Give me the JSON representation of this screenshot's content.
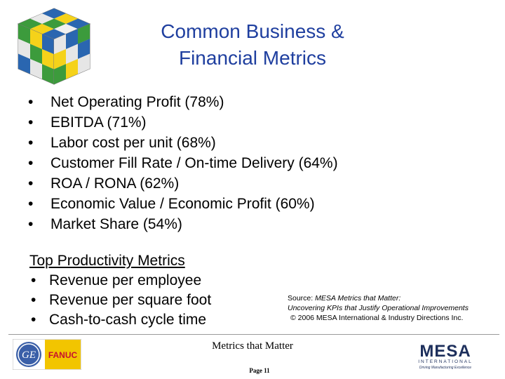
{
  "title": {
    "line1": "Common Business &",
    "line2": "Financial Metrics"
  },
  "bullets": [
    "Net Operating Profit (78%)",
    "EBITDA (71%)",
    "Labor cost per unit (68%)",
    "Customer Fill Rate / On-time Delivery (64%)",
    "ROA / RONA (62%)",
    "Economic Value / Economic Profit (60%)",
    "Market Share (54%)"
  ],
  "bullet_symbol": "•",
  "productivity": {
    "heading": "Top Productivity Metrics",
    "items": [
      "Revenue per employee",
      "Revenue per square foot",
      "Cash-to-cash cycle time"
    ]
  },
  "source": {
    "label": "Source:",
    "title": "MESA Metrics that Matter:",
    "subtitle": "Uncovering KPIs that Justify Operational Improvements",
    "copyright": "© 2006 MESA International & Industry Directions Inc."
  },
  "footer": {
    "center": "Metrics that Matter",
    "page": "Page 11",
    "left_logo_text": "FANUC",
    "left_logo_mark": "GE",
    "right_logo_main": "MESA",
    "right_logo_sub": "INTERNATIONAL",
    "right_logo_tag": "Driving Manufacturing Excellence"
  },
  "colors": {
    "title": "#1f3f9f",
    "fanuc_yellow": "#f2c500",
    "fanuc_red": "#c8102e",
    "ge_blue": "#3a5fa8",
    "mesa_navy": "#1d2f5c"
  }
}
